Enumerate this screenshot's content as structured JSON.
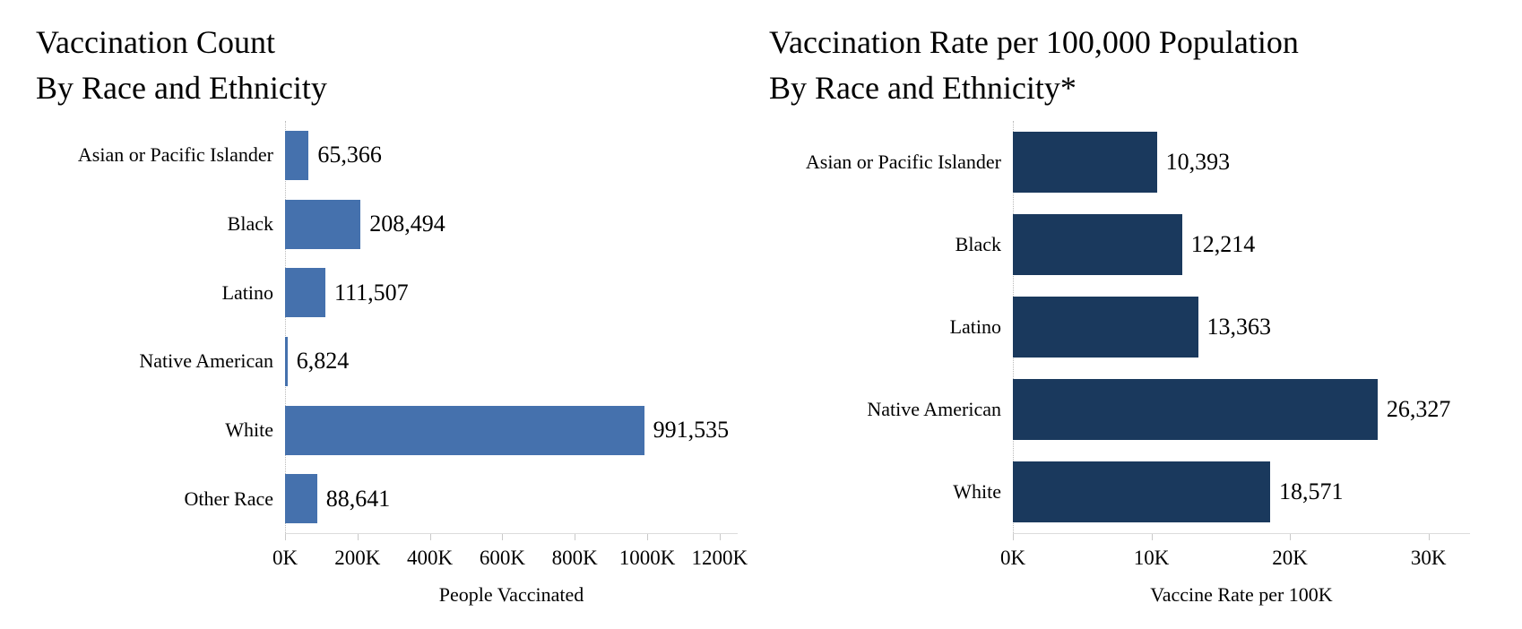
{
  "colors": {
    "background": "#ffffff",
    "left_bar": "#4571ad",
    "right_bar": "#1a395d",
    "axis_line": "#dcdcdc",
    "tick_mark": "#c9c9c9",
    "zero_line": "#b9b9b9",
    "text": "#000000"
  },
  "chart_data": [
    {
      "type": "bar",
      "orientation": "horizontal",
      "title_line1": "Vaccination Count",
      "title_line2": "By Race and Ethnicity",
      "categories": [
        "Asian or Pacific Islander",
        "Black",
        "Latino",
        "Native American",
        "White",
        "Other Race"
      ],
      "values": [
        65366,
        208494,
        111507,
        6824,
        991535,
        88641
      ],
      "value_labels": [
        "65,366",
        "208,494",
        "111,507",
        "6,824",
        "991,535",
        "88,641"
      ],
      "xlabel": "People Vaccinated",
      "xlim": [
        0,
        1250000
      ],
      "xticks": [
        {
          "value": 0,
          "label": "0K"
        },
        {
          "value": 200000,
          "label": "200K"
        },
        {
          "value": 400000,
          "label": "400K"
        },
        {
          "value": 600000,
          "label": "600K"
        },
        {
          "value": 800000,
          "label": "800K"
        },
        {
          "value": 1000000,
          "label": "1000K"
        },
        {
          "value": 1200000,
          "label": "1200K"
        }
      ],
      "bar_color": "#4571ad",
      "grid": false,
      "legend": "none"
    },
    {
      "type": "bar",
      "orientation": "horizontal",
      "title_line1": "Vaccination Rate per 100,000 Population",
      "title_line2": "By Race and Ethnicity*",
      "categories": [
        "Asian or Pacific Islander",
        "Black",
        "Latino",
        "Native American",
        "White"
      ],
      "values": [
        10393,
        12214,
        13363,
        26327,
        18571
      ],
      "value_labels": [
        "10,393",
        "12,214",
        "13,363",
        "26,327",
        "18,571"
      ],
      "xlabel": "Vaccine Rate per 100K",
      "xlim": [
        0,
        33000
      ],
      "xticks": [
        {
          "value": 0,
          "label": "0K"
        },
        {
          "value": 10000,
          "label": "10K"
        },
        {
          "value": 20000,
          "label": "20K"
        },
        {
          "value": 30000,
          "label": "30K"
        }
      ],
      "bar_color": "#1a395d",
      "grid": false,
      "legend": "none"
    }
  ]
}
